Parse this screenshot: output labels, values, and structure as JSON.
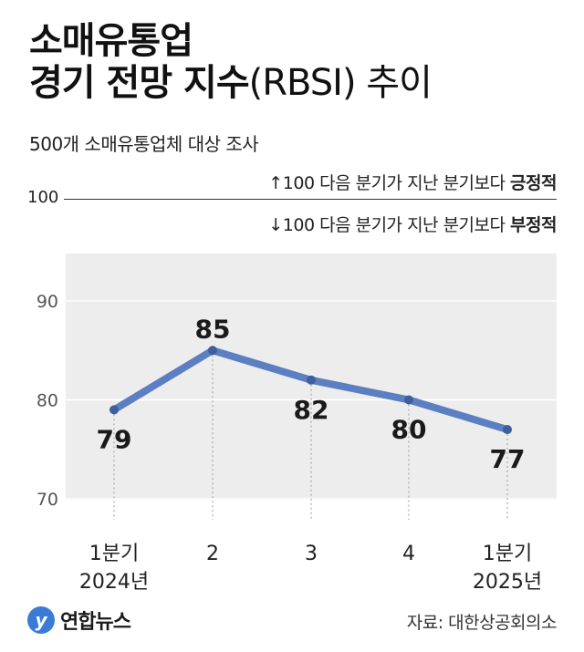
{
  "title": {
    "line1": "소매유통업",
    "line2_bold": "경기 전망 지수",
    "line2_light": "(RBSI) 추이"
  },
  "subtitle": "500개 소매유통업체 대상 조사",
  "reference": {
    "value_label": "100",
    "up_text": "↑100 다음 분기가 지난 분기보다 ",
    "up_emphasis": "긍정적",
    "down_text": "↓100 다음 분기가 지난 분기보다 ",
    "down_emphasis": "부정적"
  },
  "chart_data": {
    "type": "line",
    "categories": [
      "1분기\n2024년",
      "2",
      "3",
      "4",
      "1분기\n2025년"
    ],
    "values": [
      79,
      85,
      82,
      80,
      77
    ],
    "ylim": [
      70,
      90
    ],
    "yticks": [
      70,
      80,
      90
    ],
    "reference_line": 100,
    "grid": true,
    "line_color": "#5b7fc0",
    "background": "#ededed"
  },
  "footer": {
    "logo_mark": "y",
    "logo_text": "연합뉴스",
    "source": "자료: 대한상공회의소"
  }
}
